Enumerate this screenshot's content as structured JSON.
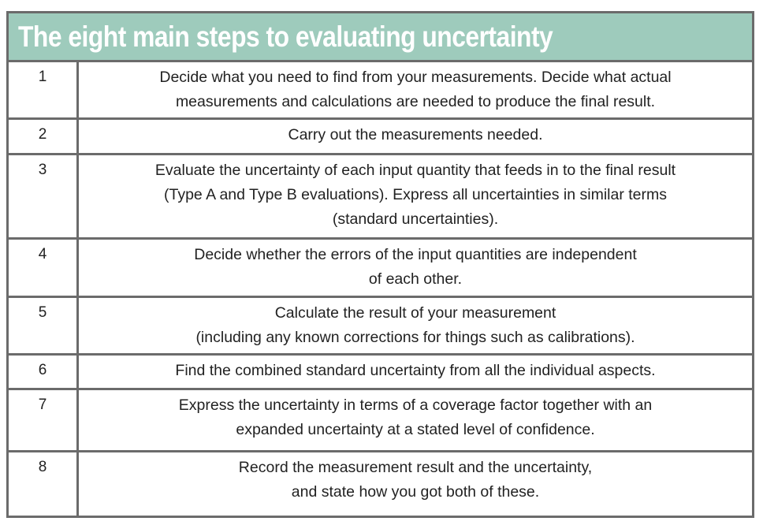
{
  "table": {
    "title": "The eight main steps to evaluating uncertainty",
    "rows": [
      {
        "number": "1",
        "lines": [
          "Decide what you need to find from your measurements. Decide what actual",
          "measurements and calculations are needed to produce the final result."
        ]
      },
      {
        "number": "2",
        "lines": [
          "Carry out the measurements needed."
        ]
      },
      {
        "number": "3",
        "lines": [
          "Evaluate the uncertainty of each input quantity that feeds in to the final result",
          "(Type A and Type B evaluations). Express all uncertainties in similar terms",
          "(standard uncertainties)."
        ]
      },
      {
        "number": "4",
        "lines": [
          "Decide whether the errors of the input quantities are independent",
          "of each other."
        ]
      },
      {
        "number": "5",
        "lines": [
          "Calculate the result of your measurement",
          "(including any known corrections for things such as calibrations)."
        ]
      },
      {
        "number": "6",
        "lines": [
          "Find the combined standard uncertainty from all the individual aspects."
        ]
      },
      {
        "number": "7",
        "lines": [
          "Express the uncertainty in terms of a coverage factor together with an",
          "expanded uncertainty at a stated level of confidence."
        ]
      },
      {
        "number": "8",
        "lines": [
          "Record the measurement result and the uncertainty,",
          "and state how you got both of these."
        ]
      }
    ]
  },
  "colors": {
    "header_background": "#9ecbbc",
    "border": "#6b6b6b",
    "header_text": "#ffffff",
    "body_text": "#222222"
  }
}
